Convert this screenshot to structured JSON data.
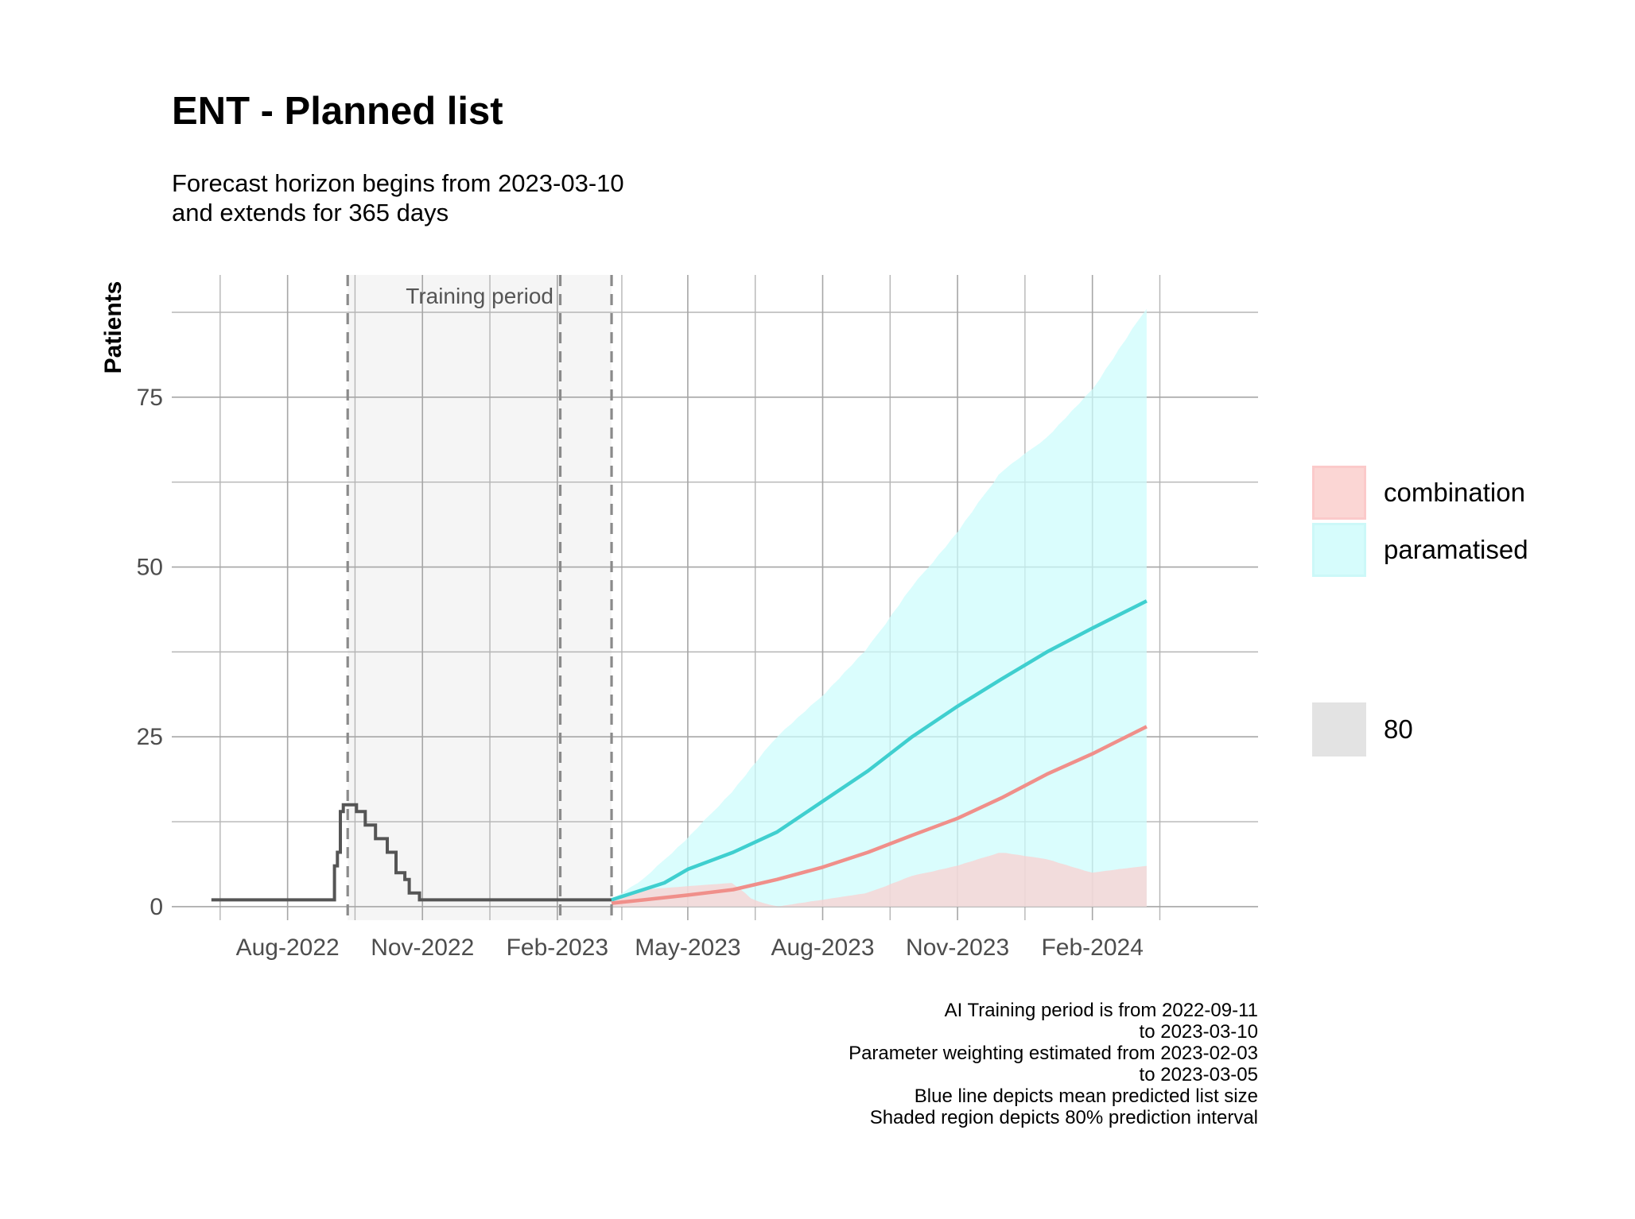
{
  "title": "ENT - Planned list",
  "subtitle": [
    "Forecast horizon begins from 2023-03-10",
    "and extends for 365 days"
  ],
  "caption": [
    "AI Training period is from 2022-09-11",
    "to 2023-03-10",
    "Parameter weighting estimated from 2023-02-03",
    "to 2023-03-05",
    "Blue line depicts mean predicted list size",
    "Shaded region depicts 80% prediction interval"
  ],
  "legend": {
    "series": [
      {
        "label": "combination",
        "color": "#f8766d"
      },
      {
        "label": "paramatised",
        "color": "#00bfc4"
      }
    ],
    "level": {
      "label": "80",
      "color": "#d9d9d9"
    }
  },
  "chart_data": {
    "type": "line",
    "ylabel": "Patients",
    "xlabel": "",
    "ylim": [
      -2,
      93
    ],
    "xlim": [
      "2022-05-14",
      "2024-05-24"
    ],
    "grid": true,
    "legend_position": "right",
    "x_ticks": [
      "2022-08-01",
      "2022-11-01",
      "2023-02-01",
      "2023-05-01",
      "2023-08-01",
      "2023-11-01",
      "2024-02-01"
    ],
    "x_tick_labels": [
      "Aug-2022",
      "Nov-2022",
      "Feb-2023",
      "May-2023",
      "Aug-2023",
      "Nov-2023",
      "Feb-2024"
    ],
    "y_ticks": [
      0,
      25,
      50,
      75
    ],
    "shaded_region": {
      "label": "Training period",
      "from": "2022-09-11",
      "to": "2023-03-10"
    },
    "vlines": [
      "2022-09-11",
      "2023-02-03",
      "2023-03-10"
    ],
    "observed": {
      "name": "observed",
      "color": "#555555",
      "points": [
        [
          "2022-06-10",
          1
        ],
        [
          "2022-09-02",
          1
        ],
        [
          "2022-09-02",
          6
        ],
        [
          "2022-09-04",
          6
        ],
        [
          "2022-09-04",
          8
        ],
        [
          "2022-09-06",
          8
        ],
        [
          "2022-09-06",
          14
        ],
        [
          "2022-09-08",
          14
        ],
        [
          "2022-09-08",
          15
        ],
        [
          "2022-09-17",
          15
        ],
        [
          "2022-09-17",
          14
        ],
        [
          "2022-09-23",
          14
        ],
        [
          "2022-09-23",
          12
        ],
        [
          "2022-09-30",
          12
        ],
        [
          "2022-09-30",
          10
        ],
        [
          "2022-10-08",
          10
        ],
        [
          "2022-10-08",
          8
        ],
        [
          "2022-10-14",
          8
        ],
        [
          "2022-10-14",
          5
        ],
        [
          "2022-10-20",
          5
        ],
        [
          "2022-10-20",
          4
        ],
        [
          "2022-10-23",
          4
        ],
        [
          "2022-10-23",
          2
        ],
        [
          "2022-10-30",
          2
        ],
        [
          "2022-10-30",
          1
        ],
        [
          "2023-03-10",
          1
        ]
      ]
    },
    "series": [
      {
        "name": "paramatised",
        "color": "#00bfc4",
        "mean": [
          [
            "2023-03-10",
            1
          ],
          [
            "2023-04-15",
            3.5
          ],
          [
            "2023-05-01",
            5.5
          ],
          [
            "2023-06-01",
            8
          ],
          [
            "2023-07-01",
            11
          ],
          [
            "2023-08-01",
            15.5
          ],
          [
            "2023-09-01",
            20
          ],
          [
            "2023-10-01",
            25
          ],
          [
            "2023-11-01",
            29.5
          ],
          [
            "2023-12-01",
            33.5
          ],
          [
            "2024-01-01",
            37.5
          ],
          [
            "2024-02-01",
            41
          ],
          [
            "2024-03-09",
            45
          ]
        ],
        "lower": [
          [
            "2023-03-10",
            0
          ],
          [
            "2024-03-09",
            0
          ]
        ],
        "upper": [
          [
            "2023-03-10",
            1
          ],
          [
            "2023-04-01",
            4
          ],
          [
            "2023-05-01",
            10
          ],
          [
            "2023-06-01",
            17
          ],
          [
            "2023-07-01",
            25
          ],
          [
            "2023-08-01",
            31
          ],
          [
            "2023-09-01",
            38
          ],
          [
            "2023-10-01",
            47
          ],
          [
            "2023-11-01",
            55
          ],
          [
            "2023-12-01",
            64
          ],
          [
            "2024-01-01",
            69
          ],
          [
            "2024-02-01",
            76
          ],
          [
            "2024-03-09",
            88
          ]
        ]
      },
      {
        "name": "combination",
        "color": "#f8766d",
        "mean": [
          [
            "2023-03-10",
            0.5
          ],
          [
            "2023-04-01",
            1
          ],
          [
            "2023-05-01",
            1.7
          ],
          [
            "2023-06-01",
            2.5
          ],
          [
            "2023-07-01",
            4
          ],
          [
            "2023-08-01",
            5.8
          ],
          [
            "2023-09-01",
            8
          ],
          [
            "2023-10-01",
            10.5
          ],
          [
            "2023-11-01",
            13
          ],
          [
            "2023-12-01",
            16
          ],
          [
            "2024-01-01",
            19.5
          ],
          [
            "2024-02-01",
            22.5
          ],
          [
            "2024-03-09",
            26.5
          ]
        ],
        "lower": [
          [
            "2023-03-10",
            0
          ],
          [
            "2024-03-09",
            0
          ]
        ],
        "upper": [
          [
            "2023-03-10",
            1
          ],
          [
            "2023-04-01",
            2.5
          ],
          [
            "2023-05-01",
            3
          ],
          [
            "2023-06-01",
            3.5
          ],
          [
            "2023-06-15",
            1
          ],
          [
            "2023-07-01",
            0
          ],
          [
            "2023-08-01",
            1
          ],
          [
            "2023-09-01",
            2
          ],
          [
            "2023-10-01",
            4.5
          ],
          [
            "2023-11-01",
            6
          ],
          [
            "2023-12-01",
            8
          ],
          [
            "2024-01-01",
            7
          ],
          [
            "2024-02-01",
            5
          ],
          [
            "2024-03-09",
            6
          ]
        ]
      }
    ]
  }
}
